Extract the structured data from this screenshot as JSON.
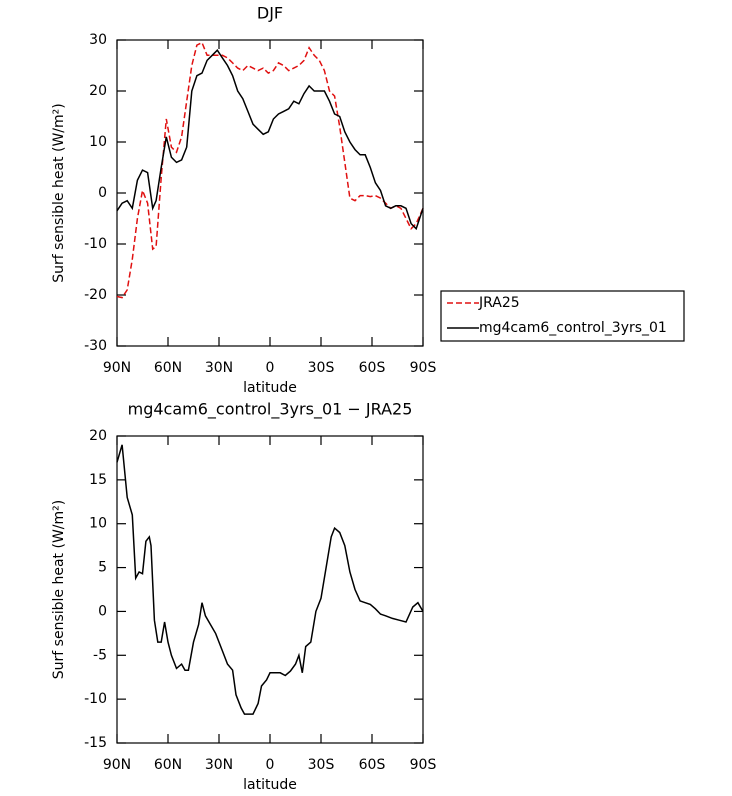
{
  "chart_data": [
    {
      "type": "line",
      "title": "DJF",
      "x_label": "latitude",
      "y_label": "Surf sensible heat (W/m²)",
      "xlim": [
        90,
        -90
      ],
      "ylim": [
        -30,
        30
      ],
      "xticks": [
        {
          "value": 90,
          "label": "90N"
        },
        {
          "value": 60,
          "label": "60N"
        },
        {
          "value": 30,
          "label": "30N"
        },
        0,
        {
          "value": -30,
          "label": "30S"
        },
        {
          "value": -60,
          "label": "60S"
        },
        {
          "value": -90,
          "label": "90S"
        }
      ],
      "yticks": [
        -30,
        -20,
        -10,
        0,
        10,
        20,
        30
      ],
      "legend": "outside-right",
      "x": [
        90,
        87,
        84,
        81,
        78,
        75,
        72,
        69,
        67,
        64,
        61,
        58,
        55,
        52,
        49,
        46,
        43,
        40,
        37,
        34,
        31,
        28,
        25,
        22,
        19,
        16,
        13,
        10,
        7,
        4,
        1,
        -2,
        -5,
        -8,
        -11,
        -14,
        -17,
        -20,
        -23,
        -26,
        -29,
        -32,
        -35,
        -38,
        -41,
        -44,
        -47,
        -50,
        -53,
        -56,
        -59,
        -62,
        -65,
        -68,
        -71,
        -74,
        -77,
        -80,
        -83,
        -86,
        -90
      ],
      "series": [
        {
          "name": "JRA25",
          "color": "#e01010",
          "line_style": "dashed",
          "values": [
            -20.3,
            -20.5,
            -19,
            -13,
            -5,
            0.5,
            -2,
            -11,
            -10.5,
            3,
            14.5,
            9,
            8,
            11,
            18,
            25,
            29,
            29.5,
            27,
            27,
            27,
            27,
            26.5,
            25.5,
            24.5,
            24,
            25,
            24.5,
            24,
            24.5,
            23.5,
            24,
            25.5,
            25,
            24,
            24.5,
            25,
            26,
            28.5,
            27,
            26,
            24,
            20,
            19,
            13,
            6,
            -1,
            -1.5,
            -0.5,
            -0.5,
            -0.7,
            -0.5,
            -1,
            -2,
            -3,
            -2.5,
            -3,
            -5,
            -7,
            -6,
            -3
          ]
        },
        {
          "name": "mg4cam6_control_3yrs_01",
          "color": "#000000",
          "line_style": "solid",
          "values": [
            -3.5,
            -2,
            -1.5,
            -3,
            2.5,
            4.5,
            4,
            -3,
            -1.5,
            5,
            11,
            7,
            6,
            6.5,
            9,
            20,
            23,
            23.5,
            26,
            27,
            28,
            26.5,
            25,
            23,
            20,
            18.5,
            16,
            13.5,
            12.5,
            11.5,
            12,
            14.5,
            15.5,
            16,
            16.5,
            18,
            17.5,
            19.5,
            21,
            20,
            20,
            20,
            18,
            15.5,
            15,
            12,
            10,
            8.5,
            7.5,
            7.5,
            5,
            2,
            0.5,
            -2.5,
            -3,
            -2.5,
            -2.5,
            -3,
            -6,
            -7,
            -3
          ]
        }
      ]
    },
    {
      "type": "line",
      "title": "mg4cam6_control_3yrs_01 − JRA25",
      "x_label": "latitude",
      "y_label": "Surf sensible heat (W/m²)",
      "xlim": [
        90,
        -90
      ],
      "ylim": [
        -15,
        20
      ],
      "xticks": [
        {
          "value": 90,
          "label": "90N"
        },
        {
          "value": 60,
          "label": "60N"
        },
        {
          "value": 30,
          "label": "30N"
        },
        0,
        {
          "value": -30,
          "label": "30S"
        },
        {
          "value": -60,
          "label": "60S"
        },
        {
          "value": -90,
          "label": "90S"
        }
      ],
      "yticks": [
        -15,
        -10,
        -5,
        0,
        5,
        10,
        15,
        20
      ],
      "x": [
        90,
        87,
        84,
        81,
        79,
        77,
        75,
        73,
        71,
        70,
        68,
        66,
        64,
        62,
        60,
        58,
        55,
        52,
        50,
        48,
        45,
        42,
        40,
        38,
        35,
        32,
        30,
        28,
        25,
        22,
        20,
        17,
        15,
        12,
        10,
        7,
        5,
        2,
        0,
        -3,
        -6,
        -9,
        -12,
        -15,
        -17,
        -19,
        -21,
        -24,
        -27,
        -30,
        -33,
        -36,
        -38,
        -41,
        -44,
        -47,
        -50,
        -53,
        -56,
        -59,
        -62,
        -65,
        -68,
        -72,
        -76,
        -80,
        -84,
        -87,
        -90
      ],
      "series": [
        {
          "color": "#000000",
          "line_style": "solid",
          "values": [
            17,
            19,
            13,
            11,
            3.8,
            4.5,
            4.3,
            8,
            8.5,
            7.5,
            -1,
            -3.5,
            -3.5,
            -1.2,
            -3.5,
            -5,
            -6.5,
            -6,
            -6.7,
            -6.7,
            -3.5,
            -1.5,
            1,
            -0.5,
            -1.5,
            -2.5,
            -3.5,
            -4.5,
            -6,
            -6.7,
            -9.5,
            -11,
            -11.7,
            -11.7,
            -11.7,
            -10.5,
            -8.5,
            -7.8,
            -7,
            -7,
            -7,
            -7.3,
            -6.8,
            -6,
            -5,
            -7,
            -4,
            -3.5,
            0,
            1.5,
            5,
            8.5,
            9.5,
            9,
            7.5,
            4.5,
            2.5,
            1.2,
            1,
            0.8,
            0.3,
            -0.3,
            -0.5,
            -0.8,
            -1,
            -1.2,
            0.5,
            1,
            0
          ]
        }
      ]
    }
  ]
}
